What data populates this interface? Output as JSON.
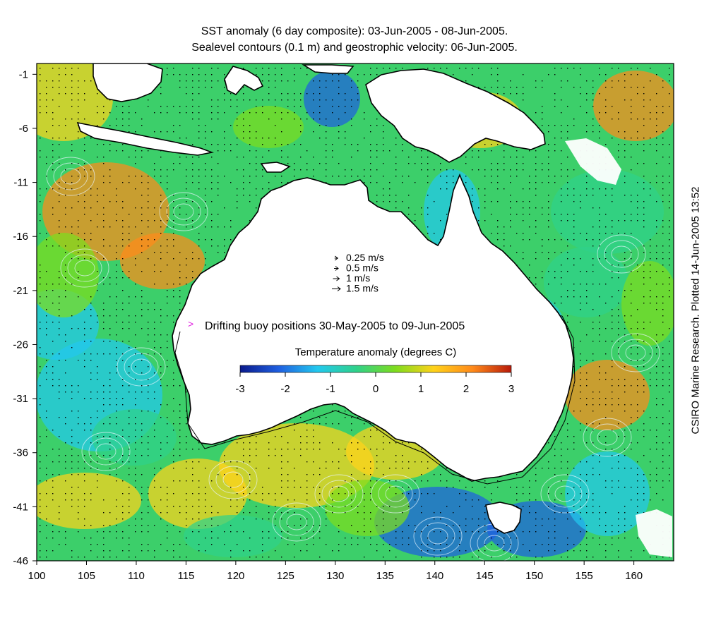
{
  "title_line1": "SST anomaly (6 day composite): 03-Jun-2005 - 08-Jun-2005.",
  "title_line2": "Sealevel contours (0.1 m) and geostrophic velocity: 06-Jun-2005.",
  "side_note": "CSIRO Marine Research. Plotted 14-Jun-2005 13:52",
  "colorbar": {
    "title": "Temperature anomaly (degrees C)",
    "min": -3,
    "max": 3,
    "ticks": [
      "-3",
      "-2",
      "-1",
      "0",
      "1",
      "2",
      "3"
    ],
    "colors": [
      "#0a1a8c",
      "#1f5fe0",
      "#22c8ee",
      "#2fd18a",
      "#7ddc1e",
      "#ffd21a",
      "#ff8a1a",
      "#b81a0a"
    ]
  },
  "velocity_legend": [
    {
      "label": "0.25 m/s",
      "speed": 0.25
    },
    {
      "label": "0.5 m/s",
      "speed": 0.5
    },
    {
      "label": "1 m/s",
      "speed": 1
    },
    {
      "label": "1.5 m/s",
      "speed": 1.5
    }
  ],
  "buoy_legend": {
    "symbol": ">",
    "label": "Drifting buoy positions 30-May-2005 to 09-Jun-2005",
    "color": "#e020e0"
  },
  "map_extent": {
    "lon": [
      100,
      164
    ],
    "lat": [
      -46,
      0
    ]
  },
  "x_ticks": [
    "100",
    "105",
    "110",
    "115",
    "120",
    "125",
    "130",
    "135",
    "140",
    "145",
    "150",
    "155",
    "160"
  ],
  "x_tick_values": [
    100,
    105,
    110,
    115,
    120,
    125,
    130,
    135,
    140,
    145,
    150,
    155,
    160
  ],
  "y_ticks": [
    "-1",
    "-6",
    "-11",
    "-16",
    "-21",
    "-26",
    "-31",
    "-36",
    "-41",
    "-46"
  ],
  "y_tick_values": [
    -1,
    -6,
    -11,
    -16,
    -21,
    -26,
    -31,
    -36,
    -41,
    -46
  ]
}
